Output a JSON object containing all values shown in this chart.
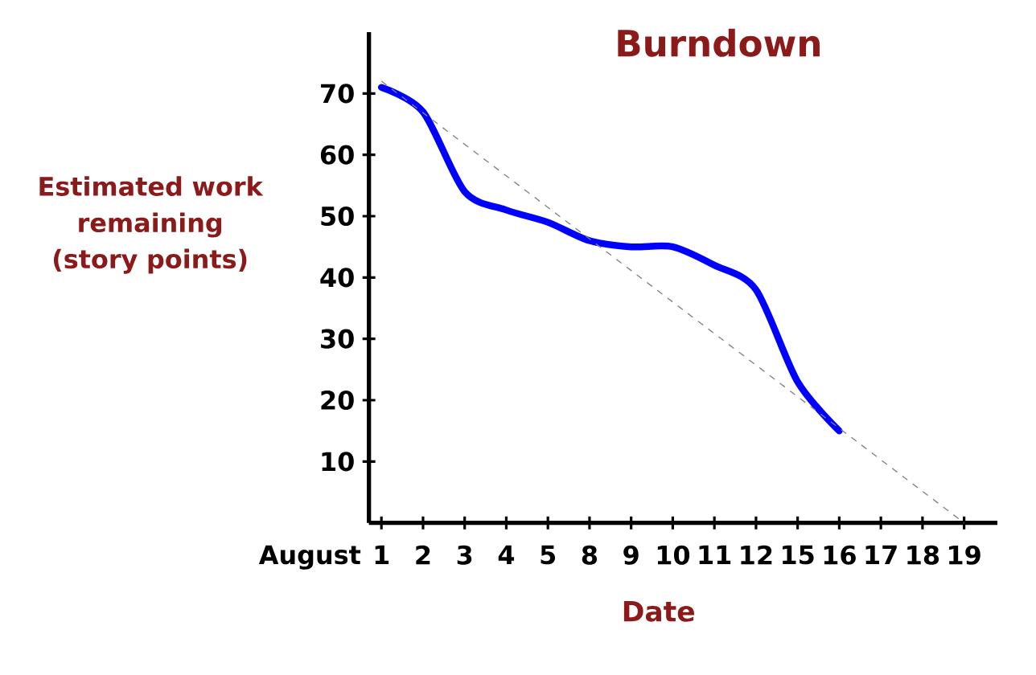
{
  "chart_data": {
    "type": "line",
    "title": "Burndown",
    "xlabel": "Date",
    "ylabel": "Estimated work remaining (story points)",
    "categories": [
      "1",
      "2",
      "3",
      "4",
      "5",
      "8",
      "9",
      "10",
      "11",
      "12",
      "15",
      "16",
      "17",
      "18",
      "19"
    ],
    "ylim": [
      0,
      80
    ],
    "yticks": [
      10,
      20,
      30,
      40,
      50,
      60,
      70
    ],
    "annotations": [
      "August"
    ],
    "grid": false,
    "series": [
      {
        "color": "#0000ff",
        "values": [
          71,
          67,
          54,
          51,
          49,
          46,
          45,
          45,
          42,
          38,
          23,
          15,
          null,
          null,
          null
        ]
      },
      {
        "type": "line",
        "line_style": "dashed",
        "color": "#808080",
        "x": [
          "1",
          "19"
        ],
        "values": [
          72,
          0
        ]
      }
    ]
  }
}
